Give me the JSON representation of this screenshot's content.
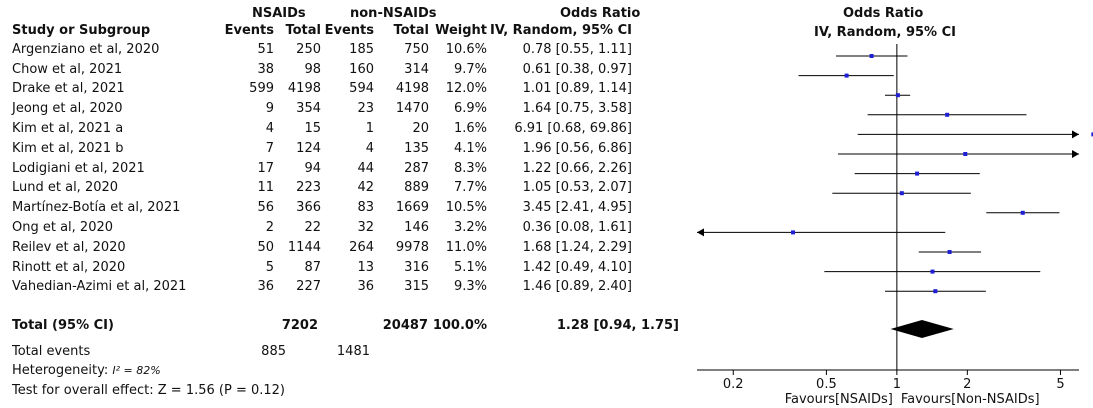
{
  "headers": {
    "group1": "NSAIDs",
    "group2": "non-NSAIDs",
    "odds_ratio_col": "Odds Ratio",
    "odds_ratio_plot": "Odds Ratio",
    "study": "Study or Subgroup",
    "events1": "Events",
    "total1": "Total",
    "events2": "Events",
    "total2": "Total",
    "weight": "Weight",
    "method_col": "IV, Random, 95% CI",
    "method_plot": "IV, Random, 95% CI"
  },
  "studies": [
    {
      "name": "Argenziano et al, 2020",
      "e1": "51",
      "t1": "250",
      "e2": "185",
      "t2": "750",
      "w": "10.6%",
      "ci": "0.78 [0.55, 1.11]"
    },
    {
      "name": "Chow et al, 2021",
      "e1": "38",
      "t1": "98",
      "e2": "160",
      "t2": "314",
      "w": "9.7%",
      "ci": "0.61 [0.38, 0.97]"
    },
    {
      "name": "Drake et al, 2021",
      "e1": "599",
      "t1": "4198",
      "e2": "594",
      "t2": "4198",
      "w": "12.0%",
      "ci": "1.01 [0.89, 1.14]"
    },
    {
      "name": "Jeong et al, 2020",
      "e1": "9",
      "t1": "354",
      "e2": "23",
      "t2": "1470",
      "w": "6.9%",
      "ci": "1.64 [0.75, 3.58]"
    },
    {
      "name": "Kim et al, 2021 a",
      "e1": "4",
      "t1": "15",
      "e2": "1",
      "t2": "20",
      "w": "1.6%",
      "ci": "6.91 [0.68, 69.86]"
    },
    {
      "name": "Kim et al, 2021 b",
      "e1": "7",
      "t1": "124",
      "e2": "4",
      "t2": "135",
      "w": "4.1%",
      "ci": "1.96 [0.56, 6.86]"
    },
    {
      "name": "Lodigiani et al, 2021",
      "e1": "17",
      "t1": "94",
      "e2": "44",
      "t2": "287",
      "w": "8.3%",
      "ci": "1.22 [0.66, 2.26]"
    },
    {
      "name": "Lund et al, 2020",
      "e1": "11",
      "t1": "223",
      "e2": "42",
      "t2": "889",
      "w": "7.7%",
      "ci": "1.05 [0.53, 2.07]"
    },
    {
      "name": "Martínez-Botía et al, 2021",
      "e1": "56",
      "t1": "366",
      "e2": "83",
      "t2": "1669",
      "w": "10.5%",
      "ci": "3.45 [2.41, 4.95]"
    },
    {
      "name": "Ong et al, 2020",
      "e1": "2",
      "t1": "22",
      "e2": "32",
      "t2": "146",
      "w": "3.2%",
      "ci": "0.36 [0.08, 1.61]"
    },
    {
      "name": "Reilev et al, 2020",
      "e1": "50",
      "t1": "1144",
      "e2": "264",
      "t2": "9978",
      "w": "11.0%",
      "ci": "1.68 [1.24, 2.29]"
    },
    {
      "name": "Rinott et al, 2020",
      "e1": "5",
      "t1": "87",
      "e2": "13",
      "t2": "316",
      "w": "5.1%",
      "ci": "1.42 [0.49, 4.10]"
    },
    {
      "name": "Vahedian-Azimi et al, 2021",
      "e1": "36",
      "t1": "227",
      "e2": "36",
      "t2": "315",
      "w": "9.3%",
      "ci": "1.46 [0.89, 2.40]"
    }
  ],
  "total": {
    "label": "Total (95% CI)",
    "t1": "7202",
    "t2": "20487",
    "w": "100.0%",
    "ci": "1.28 [0.94, 1.75]"
  },
  "total_events": {
    "label": "Total events",
    "e1": "885",
    "e2": "1481"
  },
  "heterogeneity": {
    "label": "Heterogeneity: ",
    "isq": "I² = 82%"
  },
  "overall_effect": "Test for overall effect: Z = 1.56 (P = 0.12)",
  "axis": {
    "ticks": [
      {
        "v": 0.2,
        "label": "0.2"
      },
      {
        "v": 0.5,
        "label": "0.5"
      },
      {
        "v": 1,
        "label": "1"
      },
      {
        "v": 2,
        "label": "2"
      },
      {
        "v": 5,
        "label": "5"
      }
    ],
    "favours_left": "Favours[NSAIDs]",
    "favours_right": "Favours[Non-NSAIDs]"
  },
  "colors": {
    "square": "#1f1fd6",
    "line": "#000000",
    "diamond": "#000000"
  },
  "chart_data": {
    "type": "scatter",
    "scale": "log",
    "xlim": [
      0.14,
      6.0
    ],
    "studies": [
      {
        "or": 0.78,
        "lo": 0.55,
        "hi": 1.11
      },
      {
        "or": 0.61,
        "lo": 0.38,
        "hi": 0.97
      },
      {
        "or": 1.01,
        "lo": 0.89,
        "hi": 1.14
      },
      {
        "or": 1.64,
        "lo": 0.75,
        "hi": 3.58
      },
      {
        "or": 6.91,
        "lo": 0.68,
        "hi": 69.86
      },
      {
        "or": 1.96,
        "lo": 0.56,
        "hi": 6.86
      },
      {
        "or": 1.22,
        "lo": 0.66,
        "hi": 2.26
      },
      {
        "or": 1.05,
        "lo": 0.53,
        "hi": 2.07
      },
      {
        "or": 3.45,
        "lo": 2.41,
        "hi": 4.95
      },
      {
        "or": 0.36,
        "lo": 0.08,
        "hi": 1.61
      },
      {
        "or": 1.68,
        "lo": 1.24,
        "hi": 2.29
      },
      {
        "or": 1.42,
        "lo": 0.49,
        "hi": 4.1
      },
      {
        "or": 1.46,
        "lo": 0.89,
        "hi": 2.4
      }
    ],
    "pooled": {
      "or": 1.28,
      "lo": 0.94,
      "hi": 1.75
    }
  }
}
